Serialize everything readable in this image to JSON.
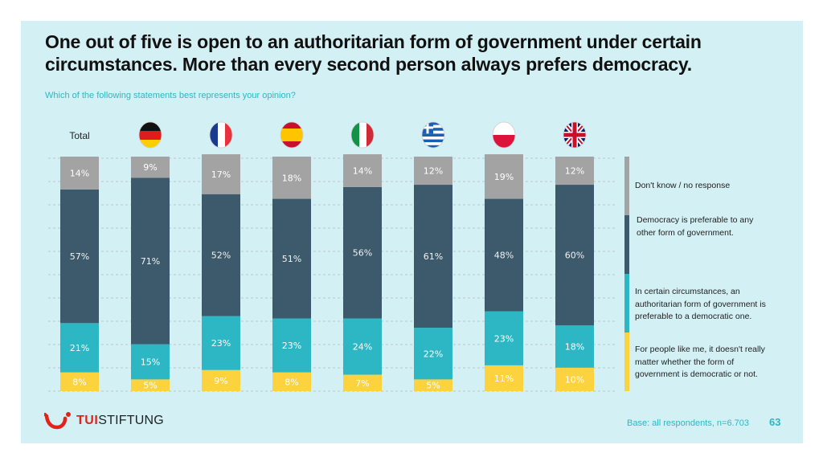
{
  "header": {
    "title": "One out of five is open to an authoritarian form of government under certain circumstances. More than every second person always prefers democracy.",
    "question": "Which of the following statements best represents your opinion?"
  },
  "footer": {
    "logo_tui": "TUI",
    "logo_stiftung": "STIFTUNG",
    "base": "Base: all respondents, n=6.703",
    "page_number": "63"
  },
  "colors": {
    "dont_know": "#a3a3a3",
    "democracy": "#3d5a6c",
    "authoritarian": "#2db7c4",
    "doesnt_matter": "#fdd23f",
    "background": "#d3f0f4",
    "accent": "#2db7c4",
    "brand_red": "#e2231a"
  },
  "chart_data": {
    "type": "bar",
    "stacked": true,
    "orientation": "vertical",
    "title": "One out of five is open to an authoritarian form of government under certain circumstances. More than every second person always prefers democracy.",
    "subtitle": "Which of the following statements best represents your opinion?",
    "categories": [
      "Total",
      "Germany",
      "France",
      "Spain",
      "Italy",
      "Greece",
      "Poland",
      "United Kingdom"
    ],
    "category_icons": [
      "text:Total",
      "flag-germany",
      "flag-france",
      "flag-spain",
      "flag-italy",
      "flag-greece",
      "flag-poland",
      "flag-united-kingdom"
    ],
    "series": [
      {
        "name": "For people like me, it doesn't really matter whether the form of government is democratic or not.",
        "key": "doesnt_matter",
        "values": [
          8,
          5,
          9,
          8,
          7,
          5,
          11,
          10
        ]
      },
      {
        "name": "In certain circumstances, an authoritarian form of government is preferable to a democratic one.",
        "key": "authoritarian",
        "values": [
          21,
          15,
          23,
          23,
          24,
          22,
          23,
          18
        ]
      },
      {
        "name": "Democracy is preferable to any other form of government.",
        "key": "democracy",
        "values": [
          57,
          71,
          52,
          51,
          56,
          61,
          48,
          60
        ]
      },
      {
        "name": "Don't know / no response",
        "key": "dont_know",
        "values": [
          14,
          9,
          17,
          18,
          14,
          12,
          19,
          12
        ]
      }
    ],
    "value_suffix": "%",
    "ylim": [
      0,
      100
    ],
    "grid": true,
    "grid_style": "dashed",
    "legend_position": "right",
    "xlabel": "",
    "ylabel": ""
  }
}
